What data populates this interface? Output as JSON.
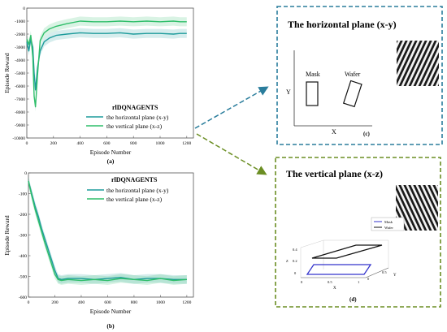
{
  "chart_data": [
    {
      "type": "line",
      "panel_label": "(a)",
      "xlabel": "Episode Number",
      "ylabel": "Episode Reward",
      "xlim": [
        0,
        1250
      ],
      "ylim": [
        -10000,
        0
      ],
      "xticks": [
        0,
        200,
        400,
        600,
        800,
        1000,
        1200
      ],
      "yticks": [
        0,
        -1000,
        -2000,
        -3000,
        -4000,
        -5000,
        -6000,
        -7000,
        -8000,
        -9000,
        -10000
      ],
      "legend_title": "rlDQNAGENTS",
      "legend_position": "center-right",
      "series": [
        {
          "name": "the horizontal plane (x-y)",
          "color": "#1d9b9b",
          "x": [
            0,
            15,
            30,
            45,
            55,
            65,
            80,
            100,
            130,
            170,
            220,
            300,
            400,
            500,
            600,
            700,
            800,
            900,
            1000,
            1100,
            1150,
            1200
          ],
          "y": [
            -2600,
            -3300,
            -2400,
            -3000,
            -5000,
            -6300,
            -4600,
            -3300,
            -2600,
            -2300,
            -2100,
            -2000,
            -1900,
            -1950,
            -1950,
            -1900,
            -2000,
            -1950,
            -1950,
            -2000,
            -1950,
            -1950
          ]
        },
        {
          "name": "the vertical plane (x-z)",
          "color": "#2fbe6a",
          "x": [
            0,
            15,
            30,
            45,
            55,
            65,
            80,
            100,
            130,
            170,
            220,
            300,
            400,
            500,
            600,
            700,
            800,
            900,
            1000,
            1100,
            1150,
            1200
          ],
          "y": [
            -2400,
            -2800,
            -2100,
            -3800,
            -6800,
            -7600,
            -5200,
            -2500,
            -1900,
            -1600,
            -1400,
            -1200,
            -1000,
            -1050,
            -1050,
            -1000,
            -1050,
            -1000,
            -1050,
            -1000,
            -1050,
            -1050
          ]
        }
      ]
    },
    {
      "type": "line",
      "panel_label": "(b)",
      "xlabel": "Episode Number",
      "ylabel": "Episode Reward",
      "xlim": [
        0,
        1250
      ],
      "ylim": [
        -600,
        0
      ],
      "xticks": [
        0,
        200,
        400,
        600,
        800,
        1000,
        1200
      ],
      "yticks": [
        0,
        -100,
        -200,
        -300,
        -400,
        -500,
        -600
      ],
      "legend_title": "rlDQNAGENTS",
      "legend_position": "top-right",
      "series": [
        {
          "name": "the horizontal plane (x-y)",
          "color": "#1d9b9b",
          "x": [
            0,
            25,
            50,
            75,
            100,
            125,
            150,
            175,
            200,
            225,
            250,
            300,
            400,
            500,
            600,
            700,
            800,
            900,
            1000,
            1100,
            1200
          ],
          "y": [
            -40,
            -100,
            -160,
            -210,
            -270,
            -320,
            -370,
            -420,
            -470,
            -510,
            -515,
            -510,
            -510,
            -515,
            -510,
            -505,
            -515,
            -510,
            -510,
            -515,
            -515
          ]
        },
        {
          "name": "the vertical plane (x-z)",
          "color": "#2fbe6a",
          "x": [
            0,
            25,
            50,
            75,
            100,
            125,
            150,
            175,
            200,
            225,
            250,
            300,
            400,
            500,
            600,
            700,
            800,
            900,
            1000,
            1100,
            1200
          ],
          "y": [
            -40,
            -110,
            -175,
            -230,
            -285,
            -340,
            -390,
            -440,
            -490,
            -515,
            -520,
            -515,
            -520,
            -515,
            -520,
            -510,
            -515,
            -520,
            -510,
            -520,
            -515
          ]
        }
      ]
    },
    {
      "type": "scatter",
      "panel_label": "(d)",
      "xlabel": "X",
      "ylabel": "Y",
      "zlabel": "Z",
      "xticks": [
        0,
        0.5,
        1
      ],
      "yticks": [
        0,
        0.5
      ],
      "zticks": [
        0,
        0.2,
        0.4
      ],
      "legend_position": "top-right",
      "series": [
        {
          "name": "Mask",
          "color": "#3333cc"
        },
        {
          "name": "Wafer",
          "color": "#111111"
        }
      ]
    }
  ],
  "panel_c": {
    "title": "The horizontal plane (x-y)",
    "mask_label": "Mask",
    "wafer_label": "Wafer",
    "axis_x": "X",
    "axis_y": "Y",
    "label": "(c)",
    "border_color": "#2a7d9c"
  },
  "panel_d": {
    "title": "The vertical plane (x-z)",
    "label": "(d)",
    "border_color": "#6b8e23",
    "inset": {
      "mask_label": "Mask",
      "wafer_label": "Wafer",
      "axis_x": "X",
      "axis_y": "Y",
      "axis_z": "Z",
      "z_ticks": [
        "0.4",
        "0.2",
        "0"
      ],
      "x_ticks": [
        "0",
        "0.5",
        "1"
      ],
      "y_ticks": [
        "0",
        "0.5"
      ]
    }
  },
  "arrows": {
    "upper_color": "#2a7d9c",
    "lower_color": "#6b8e23"
  }
}
